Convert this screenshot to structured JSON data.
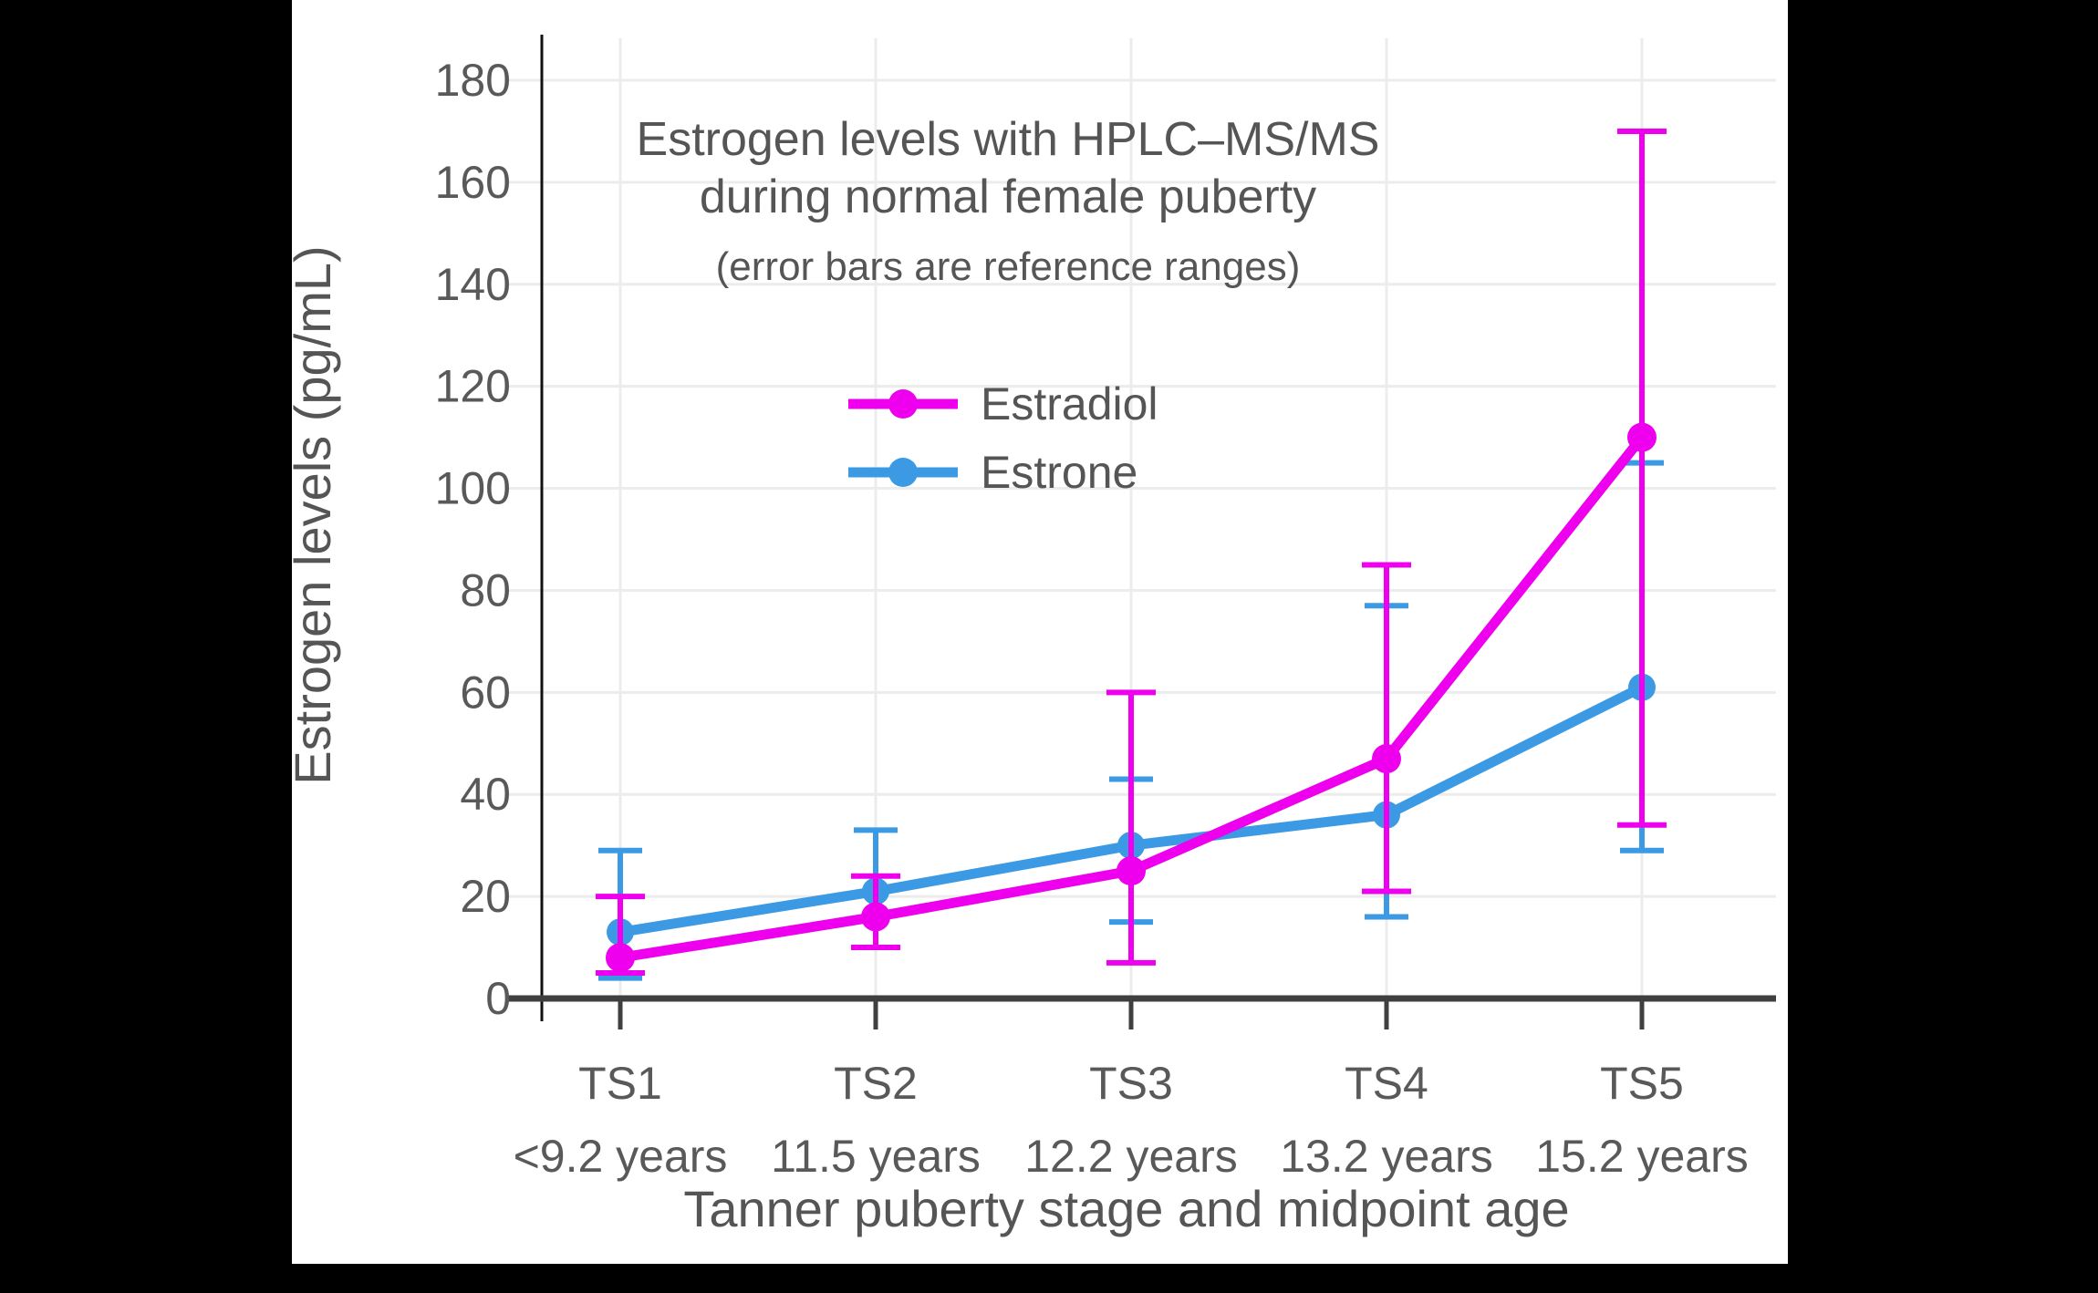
{
  "page": {
    "background": "#000000",
    "panel_color": "#ffffff"
  },
  "chart_data": {
    "type": "line",
    "title_lines": [
      "Estrogen levels with HPLC–MS/MS",
      "during normal female puberty"
    ],
    "subtitle": "(error bars are reference ranges)",
    "xlabel": "Tanner puberty stage and midpoint age",
    "ylabel": "Estrogen levels (pg/mL)",
    "categories": [
      "TS1",
      "TS2",
      "TS3",
      "TS4",
      "TS5"
    ],
    "category_sublabels": [
      "<9.2 years",
      "11.5 years",
      "12.2 years",
      "13.2 years",
      "15.2 years"
    ],
    "ylim": [
      0,
      180
    ],
    "ytick_step": 20,
    "grid": true,
    "legend": {
      "position": "inside-top-left",
      "items": [
        "Estradiol",
        "Estrone"
      ]
    },
    "series": [
      {
        "name": "Estradiol",
        "color": "#EE00EE",
        "values": [
          8,
          16,
          25,
          47,
          110
        ],
        "range_low": [
          5,
          10,
          7,
          21,
          34
        ],
        "range_high": [
          20,
          24,
          60,
          85,
          170
        ]
      },
      {
        "name": "Estrone",
        "color": "#3B9AE3",
        "values": [
          13,
          21,
          30,
          36,
          61
        ],
        "range_low": [
          4,
          10,
          15,
          16,
          29
        ],
        "range_high": [
          29,
          33,
          43,
          77,
          105
        ]
      }
    ],
    "axis_color": "#3f3f3f",
    "yaxis_line_color": "#111111",
    "grid_color": "#ececec",
    "text_color": "#595959",
    "title_color": "#555555"
  }
}
